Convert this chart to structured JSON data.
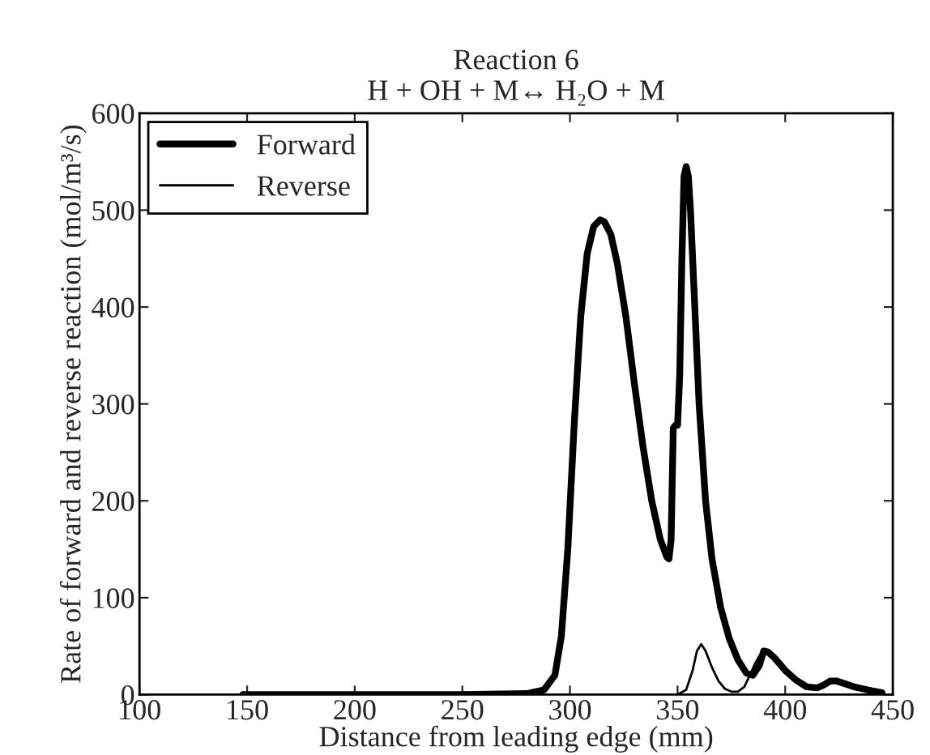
{
  "chart_data": {
    "type": "line",
    "title": "Reaction 6\nH + OH + M↔ H₂O + M",
    "xlabel": "Distance from leading edge (mm)",
    "ylabel": "Rate of forward and reverse reaction (mol/m³/s)",
    "xlim": [
      100,
      450
    ],
    "xticks": [
      100,
      150,
      200,
      250,
      300,
      350,
      400,
      450
    ],
    "ylim": [
      0,
      600
    ],
    "yticks": [
      0,
      100,
      200,
      300,
      400,
      500,
      600
    ],
    "grid": false,
    "legend": "top left",
    "line_style": "solid",
    "series": [
      {
        "name": "Forward",
        "color": "#000000",
        "x": [
          148,
          200,
          250,
          280,
          288,
          293,
          296,
          299,
          302,
          305,
          308,
          311,
          314,
          316,
          319,
          322,
          326,
          330,
          334,
          338,
          342,
          345,
          346,
          347,
          348,
          349,
          350,
          351,
          352,
          353,
          354,
          355,
          356,
          358,
          360,
          363,
          366,
          370,
          374,
          378,
          382,
          385,
          388,
          390,
          392,
          395,
          400,
          405,
          410,
          415,
          418,
          421,
          424,
          428,
          432,
          436,
          440,
          445
        ],
        "values": [
          0,
          0,
          0,
          1,
          5,
          20,
          60,
          150,
          280,
          390,
          455,
          483,
          490,
          488,
          475,
          445,
          390,
          320,
          255,
          200,
          160,
          142,
          140,
          160,
          275,
          278,
          278,
          330,
          450,
          535,
          545,
          535,
          500,
          400,
          300,
          200,
          140,
          90,
          58,
          36,
          22,
          20,
          30,
          45,
          44,
          38,
          25,
          15,
          8,
          7,
          10,
          14,
          14,
          11,
          8,
          6,
          4,
          2
        ]
      },
      {
        "name": "Reverse",
        "color": "#000000",
        "x": [
          148,
          200,
          250,
          300,
          340,
          350,
          354,
          357,
          359,
          361,
          363,
          366,
          369,
          372,
          375,
          378,
          381,
          384,
          386,
          388,
          390,
          392,
          395,
          400,
          405,
          410,
          415,
          418,
          421,
          424,
          428,
          432,
          436,
          440,
          445
        ],
        "values": [
          0,
          0,
          0,
          0,
          0,
          0,
          5,
          25,
          45,
          52,
          45,
          28,
          14,
          6,
          3,
          3,
          8,
          22,
          32,
          40,
          43,
          42,
          37,
          24,
          14,
          7,
          6,
          9,
          13,
          13,
          10,
          7,
          5,
          3,
          1
        ]
      }
    ]
  }
}
